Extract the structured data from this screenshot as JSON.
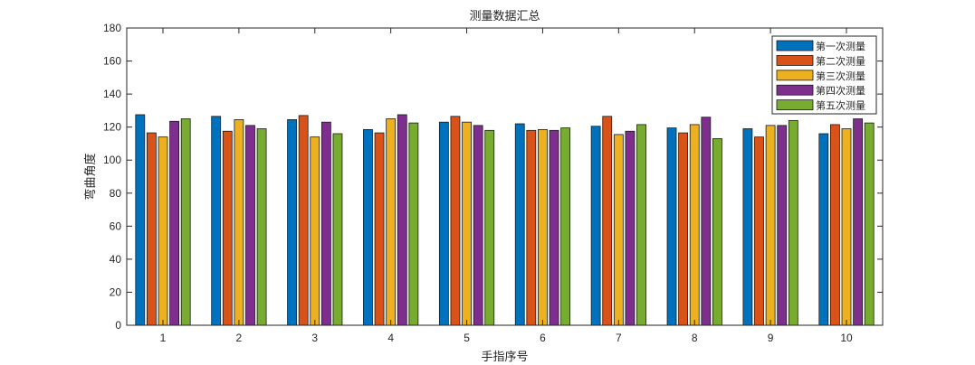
{
  "chart_data": {
    "type": "bar",
    "title": "测量数据汇总",
    "xlabel": "手指序号",
    "ylabel": "弯曲角度",
    "ylim": [
      0,
      180
    ],
    "yticks": [
      0,
      20,
      40,
      60,
      80,
      100,
      120,
      140,
      160,
      180
    ],
    "categories": [
      "1",
      "2",
      "3",
      "4",
      "5",
      "6",
      "7",
      "8",
      "9",
      "10"
    ],
    "legend_position": "top-right",
    "grid": false,
    "series": [
      {
        "name": "第一次测量",
        "color": "#0072BD",
        "values": [
          127.5,
          126.5,
          124.5,
          118.5,
          123,
          122,
          120.5,
          119.5,
          119,
          116
        ]
      },
      {
        "name": "第二次测量",
        "color": "#D95319",
        "values": [
          116.5,
          117.5,
          127,
          116.5,
          126.5,
          118,
          126.5,
          116.5,
          114,
          121.5
        ]
      },
      {
        "name": "第三次测量",
        "color": "#EDB120",
        "values": [
          114,
          124.5,
          114,
          125,
          123,
          118.5,
          115.5,
          121.5,
          121,
          119
        ]
      },
      {
        "name": "第四次测量",
        "color": "#7E2F8E",
        "values": [
          123.5,
          121,
          123,
          127.5,
          121,
          118,
          117.5,
          126,
          121,
          125
        ]
      },
      {
        "name": "第五次测量",
        "color": "#77AC30",
        "values": [
          125,
          119,
          116,
          122.5,
          118,
          119.5,
          121.5,
          113,
          124,
          122.5
        ]
      }
    ]
  }
}
